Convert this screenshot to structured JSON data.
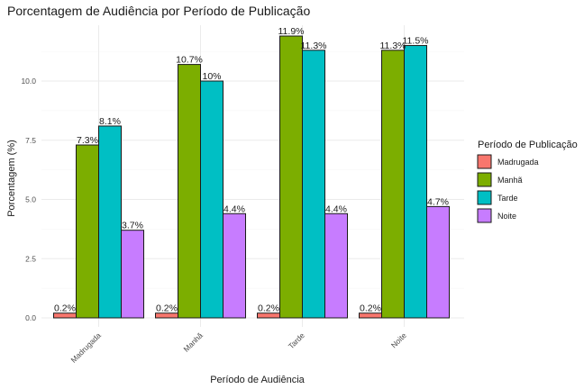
{
  "chart_data": {
    "type": "bar",
    "title": "Porcentagem de Audiência por Período de Publicação",
    "xlabel": "Período de Audiência",
    "ylabel": "Porcentagem (%)",
    "categories": [
      "Madrugada",
      "Manhã",
      "Tarde",
      "Noite"
    ],
    "ylim": [
      0,
      12.4
    ],
    "yticks": [
      0,
      2.5,
      5,
      7.5,
      10
    ],
    "ytick_labels": [
      "0.0",
      "2.5",
      "5.0",
      "7.5",
      "10.0"
    ],
    "grid": true,
    "legend": {
      "title": "Período de Publicação",
      "placement": "right"
    },
    "series": [
      {
        "name": "Madrugada",
        "color": "#F8766D",
        "values": [
          0.2,
          0.2,
          0.2,
          0.2
        ],
        "labels": [
          "0.2%",
          "0.2%",
          "0.2%",
          "0.2%"
        ]
      },
      {
        "name": "Manhã",
        "color": "#7CAE00",
        "values": [
          7.3,
          10.7,
          11.9,
          11.3
        ],
        "labels": [
          "7.3%",
          "10.7%",
          "11.9%",
          "11.3%"
        ]
      },
      {
        "name": "Tarde",
        "color": "#00BFC4",
        "values": [
          8.1,
          10.0,
          11.3,
          11.5
        ],
        "labels": [
          "8.1%",
          "10%",
          "11.3%",
          "11.5%"
        ]
      },
      {
        "name": "Noite",
        "color": "#C77CFF",
        "values": [
          3.7,
          4.4,
          4.4,
          4.7
        ],
        "labels": [
          "3.7%",
          "4.4%",
          "4.4%",
          "4.7%"
        ]
      }
    ]
  }
}
